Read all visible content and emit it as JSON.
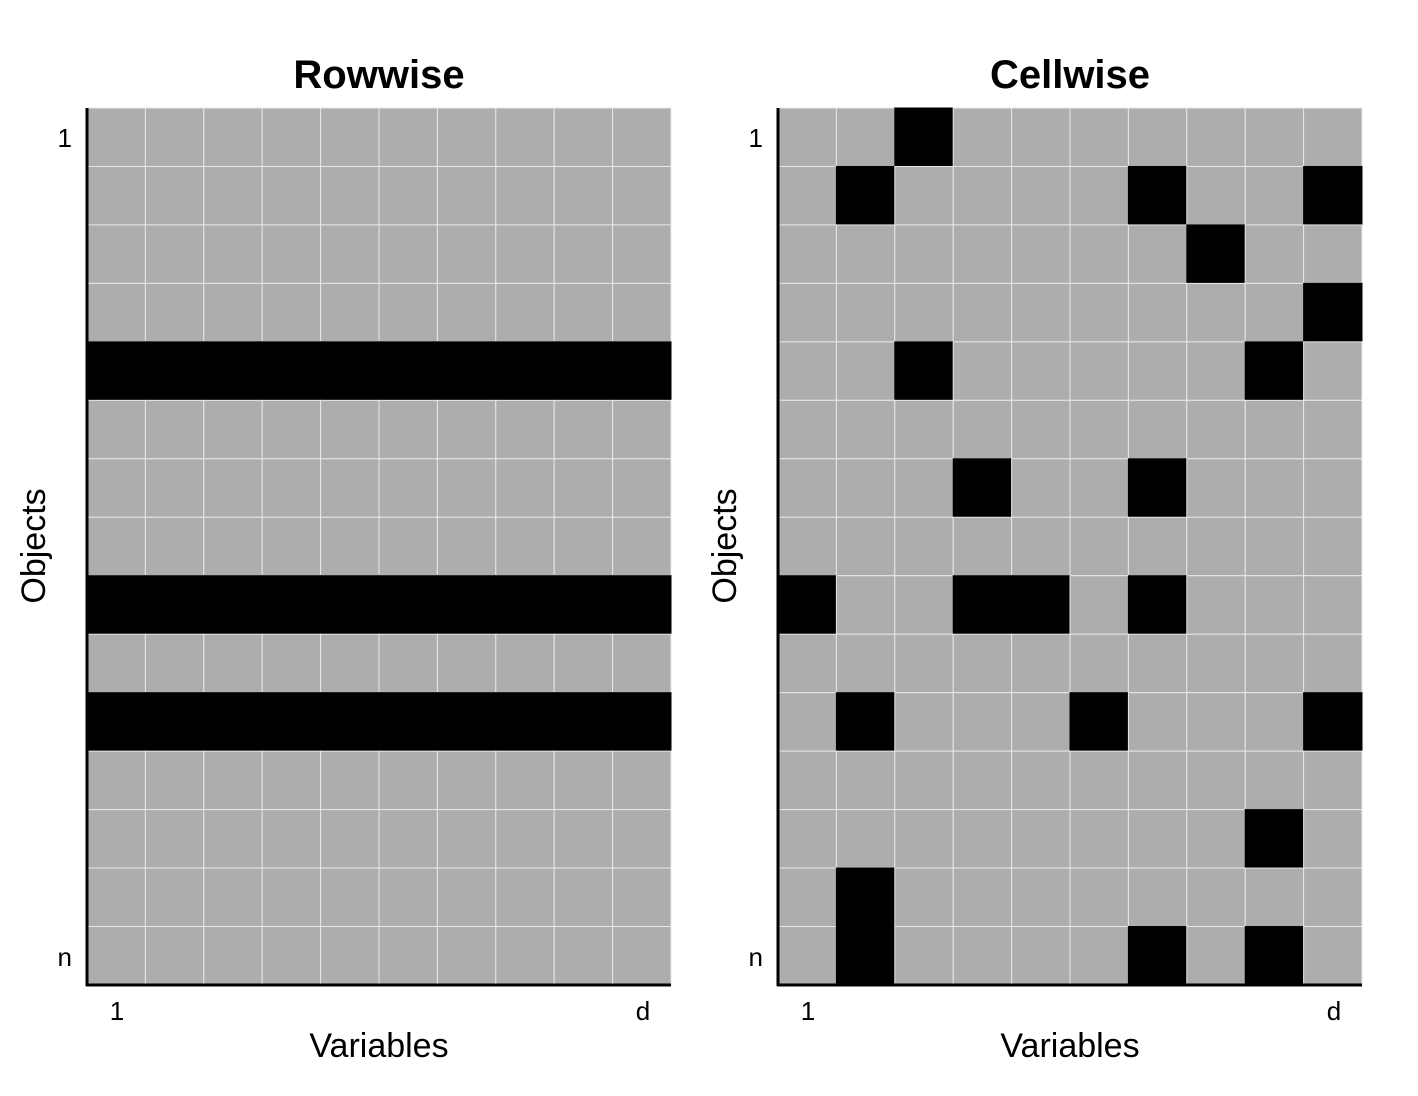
{
  "colors": {
    "normal_cell": "#adadad",
    "outlier_cell": "#000000",
    "grid_line": "#e8e8e8",
    "axis": "#000000",
    "background": "#ffffff"
  },
  "chart_data": [
    {
      "type": "heatmap",
      "title": "Rowwise",
      "xlabel": "Variables",
      "ylabel": "Objects",
      "n_rows": 15,
      "n_cols": 10,
      "x_tick_labels": [
        "1",
        "d"
      ],
      "y_tick_labels": [
        "1",
        "n"
      ],
      "legend": "none",
      "grid": true,
      "outlier_rows": [
        5,
        9,
        11
      ],
      "outlier_cells": []
    },
    {
      "type": "heatmap",
      "title": "Cellwise",
      "xlabel": "Variables",
      "ylabel": "Objects",
      "n_rows": 15,
      "n_cols": 10,
      "x_tick_labels": [
        "1",
        "d"
      ],
      "y_tick_labels": [
        "1",
        "n"
      ],
      "legend": "none",
      "grid": true,
      "outlier_rows": [],
      "outlier_cells": [
        [
          1,
          3
        ],
        [
          2,
          2
        ],
        [
          2,
          7
        ],
        [
          2,
          10
        ],
        [
          3,
          8
        ],
        [
          4,
          10
        ],
        [
          5,
          3
        ],
        [
          5,
          9
        ],
        [
          7,
          4
        ],
        [
          7,
          7
        ],
        [
          9,
          1
        ],
        [
          9,
          4
        ],
        [
          9,
          5
        ],
        [
          9,
          7
        ],
        [
          11,
          2
        ],
        [
          11,
          6
        ],
        [
          11,
          10
        ],
        [
          13,
          9
        ],
        [
          14,
          2
        ],
        [
          15,
          2
        ],
        [
          15,
          7
        ],
        [
          15,
          9
        ]
      ]
    }
  ]
}
